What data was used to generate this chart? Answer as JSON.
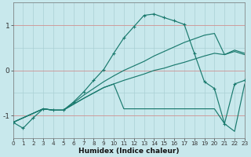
{
  "xlabel": "Humidex (Indice chaleur)",
  "background_color": "#c8e8ec",
  "grid_color": "#aad0d4",
  "red_line_color": "#d09090",
  "line_color": "#1a7a6e",
  "xlim": [
    0,
    23
  ],
  "ylim": [
    -1.5,
    1.5
  ],
  "yticks": [
    -1,
    0,
    1
  ],
  "xticks": [
    0,
    1,
    2,
    3,
    4,
    5,
    6,
    7,
    8,
    9,
    10,
    11,
    12,
    13,
    14,
    15,
    16,
    17,
    18,
    19,
    20,
    21,
    22,
    23
  ],
  "curve1_x": [
    0,
    1,
    2,
    3,
    4,
    5,
    6,
    7,
    8,
    9,
    10,
    11,
    12,
    13,
    14,
    15,
    16,
    17,
    18,
    19,
    20,
    21,
    22,
    23
  ],
  "curve1_y": [
    -1.15,
    -1.28,
    -1.05,
    -0.85,
    -0.88,
    -0.88,
    -0.7,
    -0.48,
    -0.22,
    0.02,
    0.38,
    0.72,
    0.97,
    1.22,
    1.25,
    1.17,
    1.1,
    1.02,
    0.38,
    -0.25,
    -0.4,
    -1.18,
    -0.3,
    -0.22
  ],
  "curve2_x": [
    0,
    3,
    4,
    5,
    6,
    7,
    8,
    9,
    10,
    11,
    12,
    13,
    14,
    15,
    16,
    17,
    18,
    19,
    20,
    21,
    22,
    23
  ],
  "curve2_y": [
    -1.15,
    -0.85,
    -0.88,
    -0.88,
    -0.72,
    -0.55,
    -0.4,
    -0.25,
    -0.12,
    0.0,
    0.1,
    0.2,
    0.32,
    0.42,
    0.52,
    0.62,
    0.7,
    0.78,
    0.82,
    0.35,
    0.45,
    0.38
  ],
  "curve3_x": [
    0,
    3,
    4,
    5,
    6,
    7,
    8,
    9,
    10,
    11,
    12,
    13,
    14,
    15,
    16,
    17,
    18,
    19,
    20,
    21,
    22,
    23
  ],
  "curve3_y": [
    -1.15,
    -0.85,
    -0.88,
    -0.88,
    -0.75,
    -0.62,
    -0.5,
    -0.38,
    -0.3,
    -0.22,
    -0.15,
    -0.08,
    0.0,
    0.05,
    0.12,
    0.18,
    0.25,
    0.32,
    0.38,
    0.35,
    0.42,
    0.35
  ],
  "curve4_x": [
    0,
    3,
    4,
    5,
    6,
    7,
    8,
    9,
    10,
    11,
    12,
    13,
    14,
    15,
    16,
    17,
    18,
    19,
    20,
    21,
    22,
    23
  ],
  "curve4_y": [
    -1.15,
    -0.85,
    -0.88,
    -0.88,
    -0.75,
    -0.62,
    -0.5,
    -0.38,
    -0.3,
    -0.85,
    -0.85,
    -0.85,
    -0.85,
    -0.85,
    -0.85,
    -0.85,
    -0.85,
    -0.85,
    -0.85,
    -1.18,
    -1.35,
    -0.3
  ]
}
